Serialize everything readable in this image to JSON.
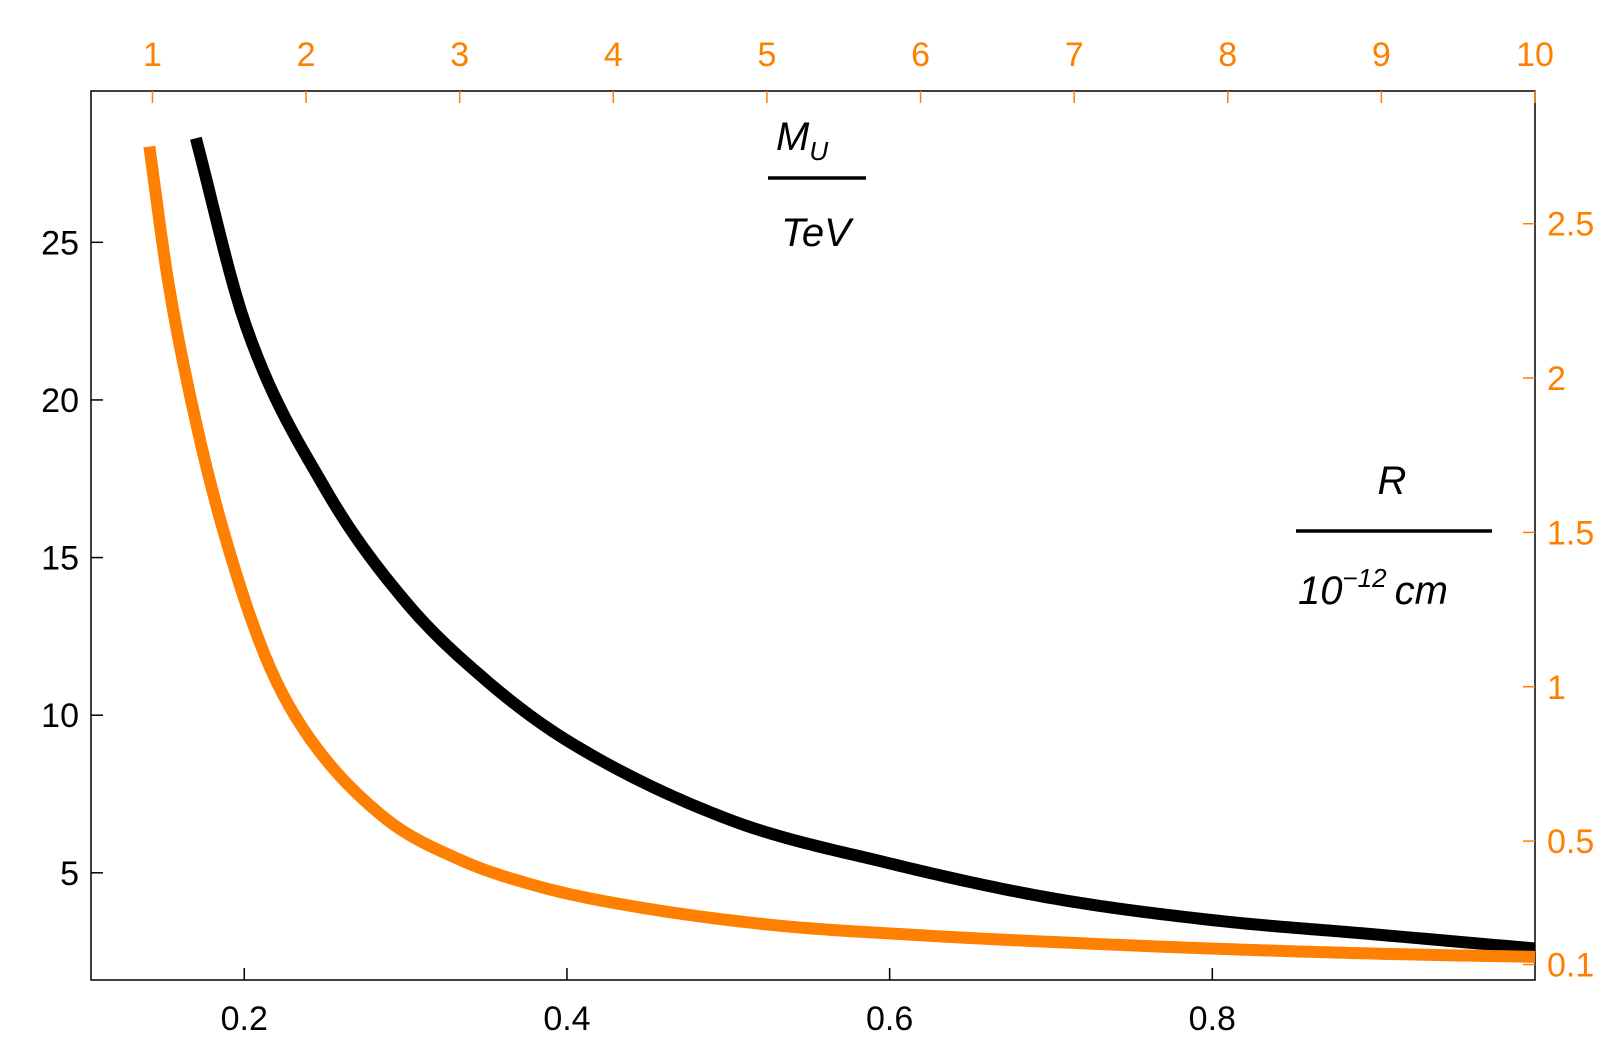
{
  "chart_data": {
    "type": "line",
    "colors": {
      "black_series": "#000000",
      "orange_series": "#ff8000",
      "axes": "#000000"
    },
    "bottom_axis": {
      "range": [
        0.105,
        1.0
      ],
      "ticks": [
        0.2,
        0.4,
        0.6,
        0.8
      ],
      "tick_labels": [
        "0.2",
        "0.4",
        "0.6",
        "0.8"
      ]
    },
    "left_axis": {
      "range": [
        1.6,
        29.8
      ],
      "ticks": [
        5,
        10,
        15,
        20,
        25
      ],
      "tick_labels": [
        "5",
        "10",
        "15",
        "20",
        "25"
      ]
    },
    "top_axis": {
      "color": "#ff8000",
      "range": [
        0.6,
        10
      ],
      "ticks": [
        1,
        2,
        3,
        4,
        5,
        6,
        7,
        8,
        9,
        10
      ],
      "tick_labels": [
        "1",
        "2",
        "3",
        "4",
        "5",
        "6",
        "7",
        "8",
        "9",
        "10"
      ]
    },
    "right_axis": {
      "color": "#ff8000",
      "range": [
        0.05,
        2.93
      ],
      "ticks": [
        0.1,
        0.5,
        1,
        1.5,
        2,
        2.5
      ],
      "tick_labels": [
        "0.1",
        "0.5",
        "1",
        "1.5",
        "2",
        "2.5"
      ]
    },
    "label_mu": {
      "main": "M",
      "sub": "U",
      "denominator": "TeV"
    },
    "label_r": {
      "numerator": "R",
      "base": "10",
      "exponent": "−12",
      "unit": "cm"
    },
    "series": [
      {
        "color": "#000000",
        "x_axis": "bottom",
        "y_axis": "left",
        "x": [
          0.17,
          0.2,
          0.25,
          0.3,
          0.35,
          0.4,
          0.5,
          0.6,
          0.7,
          0.8,
          0.9,
          1.0
        ],
        "y": [
          28.3,
          22.5,
          17.2,
          13.6,
          11.1,
          9.2,
          6.7,
          5.3,
          4.2,
          3.5,
          3.05,
          2.6
        ]
      },
      {
        "color": "#ff8000",
        "x_axis": "top",
        "y_axis": "right",
        "x": [
          0.98,
          1.1,
          1.3,
          1.5,
          1.75,
          2.0,
          2.5,
          3.0,
          3.5,
          4.0,
          5.0,
          6.0,
          7.0,
          8.0,
          9.0,
          10.0
        ],
        "y": [
          2.75,
          2.32,
          1.82,
          1.44,
          1.08,
          0.85,
          0.58,
          0.44,
          0.355,
          0.3,
          0.23,
          0.195,
          0.17,
          0.15,
          0.135,
          0.125
        ]
      }
    ]
  }
}
